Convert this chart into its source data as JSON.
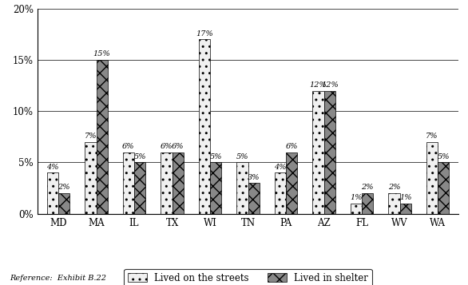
{
  "categories": [
    "MD",
    "MA",
    "IL",
    "TX",
    "WI",
    "TN",
    "PA",
    "AZ",
    "FL",
    "WV",
    "WA"
  ],
  "streets": [
    4,
    7,
    6,
    6,
    17,
    5,
    4,
    12,
    1,
    2,
    7
  ],
  "shelter": [
    2,
    15,
    5,
    6,
    5,
    3,
    6,
    12,
    2,
    1,
    5
  ],
  "streets_color": "#f0f0f0",
  "shelter_color": "#888888",
  "streets_hatch": "..",
  "shelter_hatch": "xx",
  "bar_width": 0.3,
  "ylim": [
    0,
    20
  ],
  "yticks": [
    0,
    5,
    10,
    15,
    20
  ],
  "yticklabels": [
    "0%",
    "5%",
    "10%",
    "15%",
    "20%"
  ],
  "legend_streets": "Lived on the streets",
  "legend_shelter": "Lived in shelter",
  "reference": "Reference:  Exhibit B.22",
  "label_fontsize": 7,
  "tick_fontsize": 8.5,
  "legend_fontsize": 8.5,
  "ref_fontsize": 7
}
